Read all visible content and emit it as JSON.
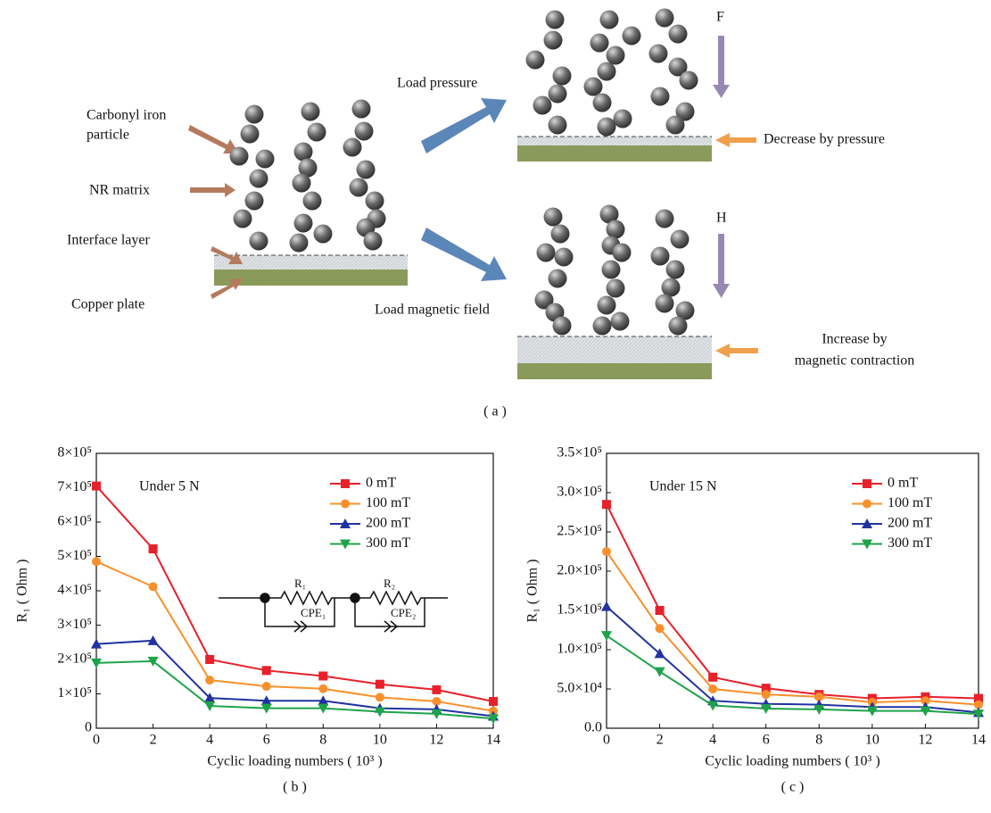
{
  "diagram": {
    "particle_label": [
      "Carbonyl iron",
      "particle"
    ],
    "matrix_label": "NR matrix",
    "interface_label": "Interface layer",
    "copper_label": "Copper plate",
    "pressure_label": "Load pressure",
    "field_label": "Load magnetic field",
    "force_symbol": "F",
    "field_symbol": "H",
    "decrease_label": "Decrease by pressure",
    "increase_label": [
      "Increase by",
      "magnetic contraction"
    ],
    "panel_label": "( a )"
  },
  "chart_data": [
    {
      "type": "line",
      "panel_label": "( b )",
      "annotation": "Under 5 N",
      "circuit_labels": [
        "R₁",
        "CPE₁",
        "R₂",
        "CPE₂"
      ],
      "x_label": "Cyclic loading numbers ( 10³ )",
      "y_label": "R₁ ( Ohm )",
      "x": [
        0,
        2,
        4,
        6,
        8,
        10,
        12,
        14
      ],
      "xlim": [
        0,
        14
      ],
      "xticks": [
        0,
        2,
        4,
        6,
        8,
        10,
        12,
        14
      ],
      "ylim": [
        0,
        800000
      ],
      "yticks": [
        0,
        {
          "value": 100000,
          "label": "1×10⁵"
        },
        {
          "value": 200000,
          "label": "2×10⁵"
        },
        {
          "value": 300000,
          "label": "3×10⁵"
        },
        {
          "value": 400000,
          "label": "4×10⁵"
        },
        {
          "value": 500000,
          "label": "5×10⁵"
        },
        {
          "value": 600000,
          "label": "6×10⁵"
        },
        {
          "value": 700000,
          "label": "7×10⁵"
        },
        {
          "value": 800000,
          "label": "8×10⁵"
        }
      ],
      "series": [
        {
          "name": "0 mT",
          "color": "#e8202a",
          "marker": "square",
          "values": [
            705000,
            522000,
            200000,
            168000,
            152000,
            128000,
            112000,
            78000
          ]
        },
        {
          "name": "100 mT",
          "color": "#f7902b",
          "marker": "circle",
          "values": [
            485000,
            412000,
            140000,
            122000,
            115000,
            90000,
            78000,
            50000
          ]
        },
        {
          "name": "200 mT",
          "color": "#2133a0",
          "marker": "triangle-up",
          "values": [
            245000,
            255000,
            88000,
            80000,
            80000,
            58000,
            55000,
            35000
          ]
        },
        {
          "name": "300 mT",
          "color": "#1fa34a",
          "marker": "triangle-down",
          "values": [
            190000,
            195000,
            65000,
            58000,
            58000,
            48000,
            42000,
            28000
          ]
        }
      ]
    },
    {
      "type": "line",
      "panel_label": "( c )",
      "annotation": "Under 15 N",
      "x_label": "Cyclic loading numbers ( 10³ )",
      "y_label": "R₁ ( Ohm )",
      "x": [
        0,
        2,
        4,
        6,
        8,
        10,
        12,
        14
      ],
      "xlim": [
        0,
        14
      ],
      "xticks": [
        0,
        2,
        4,
        6,
        8,
        10,
        12,
        14
      ],
      "ylim": [
        0,
        350000
      ],
      "yticks": [
        {
          "value": 0,
          "label": "0.0"
        },
        {
          "value": 50000,
          "label": "5.0×10⁴"
        },
        {
          "value": 100000,
          "label": "1.0×10⁵"
        },
        {
          "value": 150000,
          "label": "1.5×10⁵"
        },
        {
          "value": 200000,
          "label": "2.0×10⁵"
        },
        {
          "value": 250000,
          "label": "2.5×10⁵"
        },
        {
          "value": 300000,
          "label": "3.0×10⁵"
        },
        {
          "value": 350000,
          "label": "3.5×10⁵"
        }
      ],
      "series": [
        {
          "name": "0 mT",
          "color": "#e8202a",
          "marker": "square",
          "values": [
            285000,
            150000,
            65000,
            51000,
            43000,
            38000,
            40000,
            38000
          ]
        },
        {
          "name": "100 mT",
          "color": "#f7902b",
          "marker": "circle",
          "values": [
            225000,
            127000,
            50000,
            43000,
            40000,
            33000,
            35000,
            30000
          ]
        },
        {
          "name": "200 mT",
          "color": "#2133a0",
          "marker": "triangle-up",
          "values": [
            155000,
            95000,
            35000,
            31000,
            30000,
            27000,
            27000,
            20000
          ]
        },
        {
          "name": "300 mT",
          "color": "#1fa34a",
          "marker": "triangle-down",
          "values": [
            118000,
            72000,
            29000,
            25000,
            24000,
            22000,
            22000,
            18000
          ]
        }
      ]
    }
  ]
}
